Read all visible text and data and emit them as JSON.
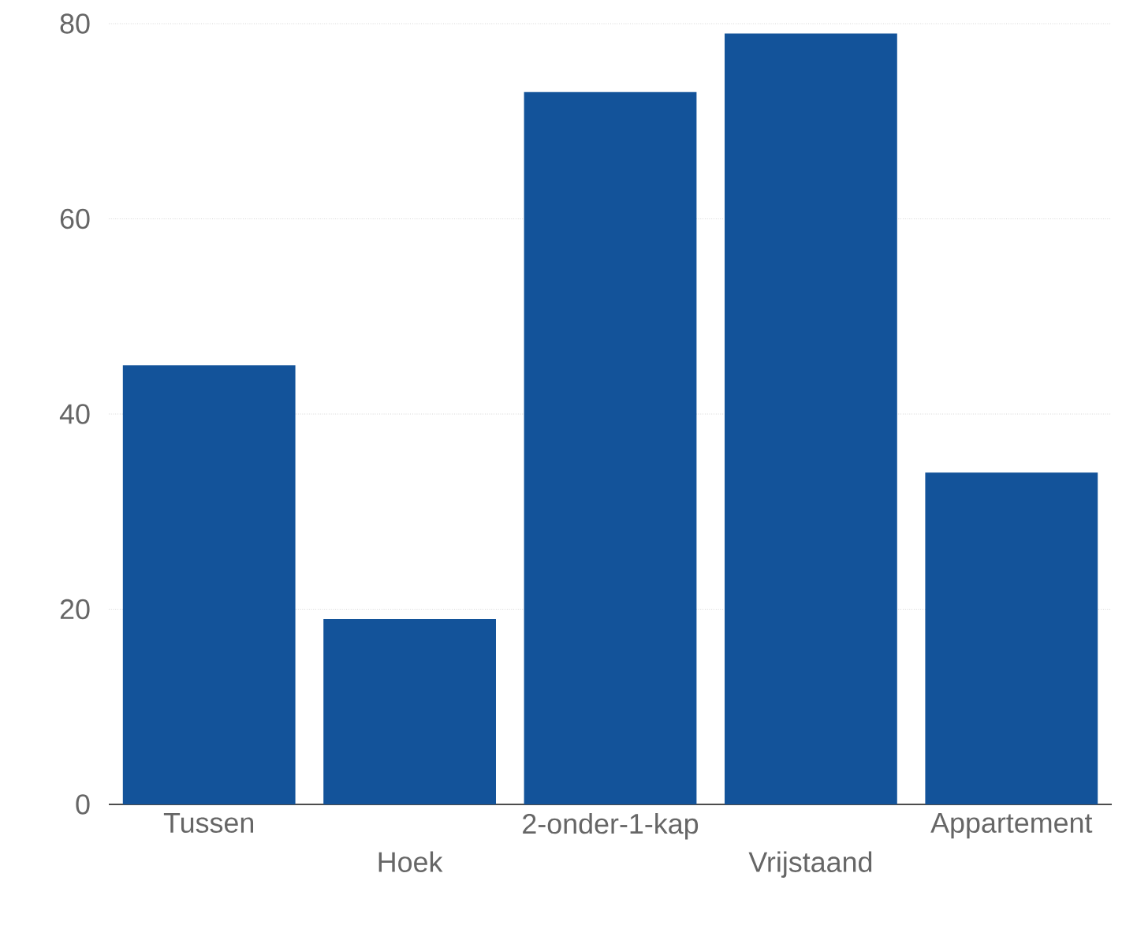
{
  "chart_data": {
    "type": "bar",
    "categories": [
      "Tussen",
      "Hoek",
      "2-onder-1-kap",
      "Vrijstaand",
      "Appartement"
    ],
    "values": [
      45,
      19,
      73,
      79,
      34
    ],
    "color": "#13539a",
    "ylim": [
      0,
      80
    ],
    "yticks": [
      0,
      20,
      40,
      60,
      80
    ],
    "grid": "y"
  }
}
